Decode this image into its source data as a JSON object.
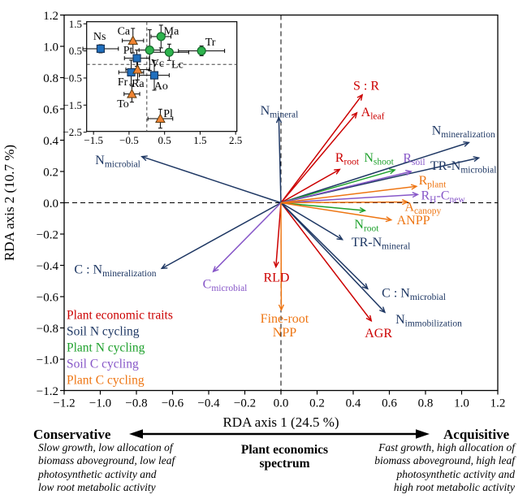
{
  "colors": {
    "red": "#CC0000",
    "navy": "#1F3864",
    "green": "#1FA12D",
    "purple": "#8757C8",
    "orange": "#EE7512",
    "black": "#000000",
    "marker_blue": "#1F6FBE",
    "marker_blue_border": "#17375E",
    "marker_green": "#2EB34E",
    "marker_green_border": "#156B2B",
    "marker_orange": "#F08433",
    "marker_orange_border": "#5A3A10"
  },
  "axes": {
    "x_label": "RDA axis 1 (24.5 %)",
    "y_label": "RDA axis 2 (10.7 %)",
    "x_range": [
      -1.2,
      1.2
    ],
    "y_range": [
      -1.2,
      1.2
    ],
    "x_ticks": [
      -1.2,
      -1.0,
      -0.8,
      -0.6,
      -0.4,
      -0.2,
      0.0,
      0.2,
      0.4,
      0.6,
      0.8,
      1.0,
      1.2
    ],
    "x_tick_labels": [
      "−1.2",
      "−1.0",
      "−0.8",
      "−0.6",
      "−0.4",
      "−0.2",
      "0.0",
      "0.2",
      "0.4",
      "0.6",
      "0.8",
      "1.0",
      "1.2"
    ],
    "y_ticks": [
      1.2,
      1.0,
      0.8,
      0.6,
      0.4,
      0.2,
      0.0,
      -0.2,
      -0.4,
      -0.6,
      -0.8,
      -1.0,
      -1.2
    ],
    "y_tick_labels": [
      "1.2",
      "1.0",
      "0.8",
      "0.6",
      "0.4",
      "0.2",
      "0.0",
      "−0.2",
      "−0.4",
      "−0.6",
      "−0.8",
      "−1.0",
      "−1.2"
    ]
  },
  "legend": {
    "items": [
      {
        "label": "Plant economic traits",
        "group": "red"
      },
      {
        "label": "Soil N cycling",
        "group": "navy"
      },
      {
        "label": "Plant N cycling",
        "group": "green"
      },
      {
        "label": "Soil C cycling",
        "group": "purple"
      },
      {
        "label": "Plant C cycling",
        "group": "orange"
      }
    ]
  },
  "chart_data": {
    "type": "scatter",
    "subtype": "rda-biplot-with-inset",
    "arrows": [
      {
        "id": "s-r",
        "group": "red",
        "x": 0.45,
        "y": 0.69,
        "lx": 0.472,
        "ly": 0.751,
        "label": [
          [
            {
              "t": "S : R"
            }
          ]
        ]
      },
      {
        "id": "a-leaf",
        "group": "red",
        "x": 0.42,
        "y": 0.575,
        "lx": 0.508,
        "ly": 0.582,
        "label": [
          [
            {
              "t": "A"
            },
            {
              "t": "leaf",
              "sub": true
            }
          ]
        ]
      },
      {
        "id": "r-root",
        "group": "red",
        "x": 0.325,
        "y": 0.213,
        "lx": 0.366,
        "ly": 0.291,
        "label": [
          [
            {
              "t": "R"
            },
            {
              "t": "root",
              "sub": true
            }
          ]
        ]
      },
      {
        "id": "rld",
        "group": "red",
        "x": -0.028,
        "y": -0.41,
        "lx": -0.025,
        "ly": -0.475,
        "label": [
          [
            {
              "t": "RLD"
            }
          ]
        ]
      },
      {
        "id": "agr",
        "group": "red",
        "x": 0.5,
        "y": -0.755,
        "lx": 0.54,
        "ly": -0.83,
        "label": [
          [
            {
              "t": "AGR"
            }
          ]
        ]
      },
      {
        "id": "n-mineral",
        "group": "navy",
        "x": -0.012,
        "y": 0.545,
        "lx": -0.009,
        "ly": 0.592,
        "label": [
          [
            {
              "t": "N"
            },
            {
              "t": "mineral",
              "sub": true
            }
          ]
        ]
      },
      {
        "id": "n-mineralization",
        "group": "navy",
        "x": 1.04,
        "y": 0.385,
        "lx": 1.01,
        "ly": 0.465,
        "label": [
          [
            {
              "t": "N"
            },
            {
              "t": "mineralization",
              "sub": true
            }
          ]
        ]
      },
      {
        "id": "tr-n-microbial",
        "group": "navy",
        "x": 1.095,
        "y": 0.287,
        "lx": 1.01,
        "ly": 0.239,
        "label": [
          [
            {
              "t": "TR-N"
            },
            {
              "t": "microbial",
              "sub": true
            }
          ]
        ]
      },
      {
        "id": "tr-n-mineral",
        "group": "navy",
        "x": 0.34,
        "y": -0.235,
        "lx": 0.553,
        "ly": -0.249,
        "label": [
          [
            {
              "t": "TR-N"
            },
            {
              "t": "mineral",
              "sub": true
            }
          ]
        ]
      },
      {
        "id": "c-n-microbial",
        "group": "navy",
        "x": 0.48,
        "y": -0.55,
        "lx": 0.735,
        "ly": -0.574,
        "label": [
          [
            {
              "t": "C : N"
            },
            {
              "t": "microbial",
              "sub": true
            }
          ]
        ]
      },
      {
        "id": "n-immobilization",
        "group": "navy",
        "x": 0.575,
        "y": -0.7,
        "lx": 0.818,
        "ly": -0.743,
        "label": [
          [
            {
              "t": "N"
            },
            {
              "t": "immobilization",
              "sub": true
            }
          ]
        ]
      },
      {
        "id": "c-n-mineralization",
        "group": "navy",
        "x": -0.66,
        "y": -0.42,
        "lx": -0.917,
        "ly": -0.423,
        "label": [
          [
            {
              "t": "C : N"
            },
            {
              "t": "mineralization",
              "sub": true
            }
          ]
        ]
      },
      {
        "id": "n-microbial",
        "group": "navy",
        "x": -0.77,
        "y": 0.295,
        "lx": -0.903,
        "ly": 0.275,
        "label": [
          [
            {
              "t": "N"
            },
            {
              "t": "microbial",
              "sub": true
            }
          ]
        ]
      },
      {
        "id": "n-shoot",
        "group": "green",
        "x": 0.63,
        "y": 0.21,
        "lx": 0.542,
        "ly": 0.291,
        "label": [
          [
            {
              "t": "N"
            },
            {
              "t": "shoot",
              "sub": true
            }
          ]
        ]
      },
      {
        "id": "n-root",
        "group": "green",
        "x": 0.465,
        "y": -0.05,
        "lx": 0.474,
        "ly": -0.135,
        "label": [
          [
            {
              "t": "N"
            },
            {
              "t": "root",
              "sub": true
            }
          ]
        ]
      },
      {
        "id": "r-soil",
        "group": "purple",
        "x": 0.72,
        "y": 0.2,
        "lx": 0.737,
        "ly": 0.29,
        "label": [
          [
            {
              "t": "R"
            },
            {
              "t": "soil",
              "sub": true
            }
          ]
        ]
      },
      {
        "id": "rh-cnew",
        "group": "purple",
        "x": 0.757,
        "y": 0.053,
        "lx": 0.897,
        "ly": 0.049,
        "label": [
          [
            {
              "t": "R"
            },
            {
              "t": "H",
              "sub": true
            },
            {
              "t": "-C"
            },
            {
              "t": "new",
              "sub": true
            }
          ]
        ]
      },
      {
        "id": "c-microbial",
        "group": "purple",
        "x": -0.375,
        "y": -0.44,
        "lx": -0.31,
        "ly": -0.517,
        "label": [
          [
            {
              "t": "C"
            },
            {
              "t": "microbial",
              "sub": true
            }
          ]
        ]
      },
      {
        "id": "r-plant",
        "group": "orange",
        "x": 0.75,
        "y": 0.105,
        "lx": 0.838,
        "ly": 0.145,
        "label": [
          [
            {
              "t": "R"
            },
            {
              "t": "plant",
              "sub": true
            }
          ]
        ]
      },
      {
        "id": "a-canopy",
        "group": "orange",
        "x": 0.7,
        "y": 0.005,
        "lx": 0.786,
        "ly": -0.024,
        "label": [
          [
            {
              "t": "A"
            },
            {
              "t": "canopy",
              "sub": true
            }
          ]
        ]
      },
      {
        "id": "anpp",
        "group": "orange",
        "x": 0.61,
        "y": -0.11,
        "lx": 0.733,
        "ly": -0.109,
        "label": [
          [
            {
              "t": "ANPP"
            }
          ]
        ]
      },
      {
        "id": "fine-root-npp",
        "group": "orange",
        "x": 0.002,
        "y": -0.685,
        "lx": 0.02,
        "ly": -0.782,
        "label": [
          [
            {
              "t": "Fine-root"
            }
          ],
          [
            {
              "t": "NPP"
            }
          ]
        ]
      }
    ],
    "inset": {
      "x_range": [
        -1.69,
        2.54
      ],
      "y_range": [
        -2.47,
        1.58
      ],
      "x_ticks": [
        -1.5,
        -0.5,
        0.5,
        1.5,
        2.5
      ],
      "x_tick_labels": [
        "−1.5",
        "−0.5",
        "0.5",
        "1.5",
        "2.5"
      ],
      "y_ticks": [
        1.5,
        0.5,
        -0.5,
        -1.5,
        -2.5
      ],
      "y_tick_labels": [
        "1.5",
        "0.5",
        "−0.5",
        "−1.5",
        "−2.5"
      ],
      "points": [
        {
          "id": "Ns",
          "marker": "square",
          "x": -1.3,
          "y": 0.58,
          "xerr": 0.5,
          "yerr": 0.15,
          "lx": -1.33,
          "ly": 1.05
        },
        {
          "id": "Ca",
          "marker": "triangle",
          "x": -0.39,
          "y": 0.88,
          "xerr": 0.3,
          "yerr": 0.45,
          "lx": -0.65,
          "ly": 1.25
        },
        {
          "id": "Ma",
          "marker": "circle",
          "x": 0.4,
          "y": 1.03,
          "xerr": 0.28,
          "yerr": 0.42,
          "lx": 0.69,
          "ly": 1.25
        },
        {
          "id": "Tr",
          "marker": "circle",
          "x": 1.54,
          "y": 0.5,
          "xerr": 0.65,
          "yerr": 0.18,
          "lx": 1.79,
          "ly": 0.85
        },
        {
          "id": "Vc",
          "marker": "circle",
          "x": 0.08,
          "y": 0.53,
          "xerr": 0.3,
          "yerr": 0.75,
          "lx": 0.3,
          "ly": 0.07
        },
        {
          "id": "Lc",
          "marker": "circle",
          "x": 0.63,
          "y": 0.45,
          "xerr": 0.55,
          "yerr": 0.3,
          "lx": 0.86,
          "ly": 0.02
        },
        {
          "id": "Pt",
          "marker": "square",
          "x": -0.28,
          "y": 0.23,
          "xerr": 0.35,
          "yerr": 0.3,
          "lx": -0.53,
          "ly": 0.54
        },
        {
          "id": "Fr",
          "marker": "square",
          "x": -0.44,
          "y": -0.29,
          "xerr": 0.35,
          "yerr": 0.45,
          "lx": -0.68,
          "ly": -0.63
        },
        {
          "id": "Ra",
          "marker": "triangle",
          "x": -0.26,
          "y": -0.19,
          "xerr": 0.33,
          "yerr": 0.38,
          "lx": -0.25,
          "ly": -0.68
        },
        {
          "id": "Ao",
          "marker": "square",
          "x": 0.21,
          "y": -0.4,
          "xerr": 0.42,
          "yerr": 0.55,
          "lx": 0.4,
          "ly": -0.78
        },
        {
          "id": "To",
          "marker": "triangle",
          "x": -0.42,
          "y": -1.09,
          "xerr": 0.22,
          "yerr": 0.3,
          "lx": -0.67,
          "ly": -1.43
        },
        {
          "id": "Pl",
          "marker": "triangle",
          "x": 0.38,
          "y": -2.0,
          "xerr": 0.35,
          "yerr": 0.35,
          "lx": 0.6,
          "ly": -1.8
        }
      ]
    }
  },
  "footer": {
    "conservative": "Conservative",
    "acquisitive": "Acquisitive",
    "spectrum_line1": "Plant economics",
    "spectrum_line2": "spectrum",
    "left_text": "Slow growth, low allocation of\nbiomass aboveground, low leaf\nphotosynthetic activity and\nlow root metabolic activity",
    "right_text": "Fast growth, high allocation of\nbiomass aboveground, high leaf\nphotosynthetic activity and\nhigh root metabolic activity"
  }
}
